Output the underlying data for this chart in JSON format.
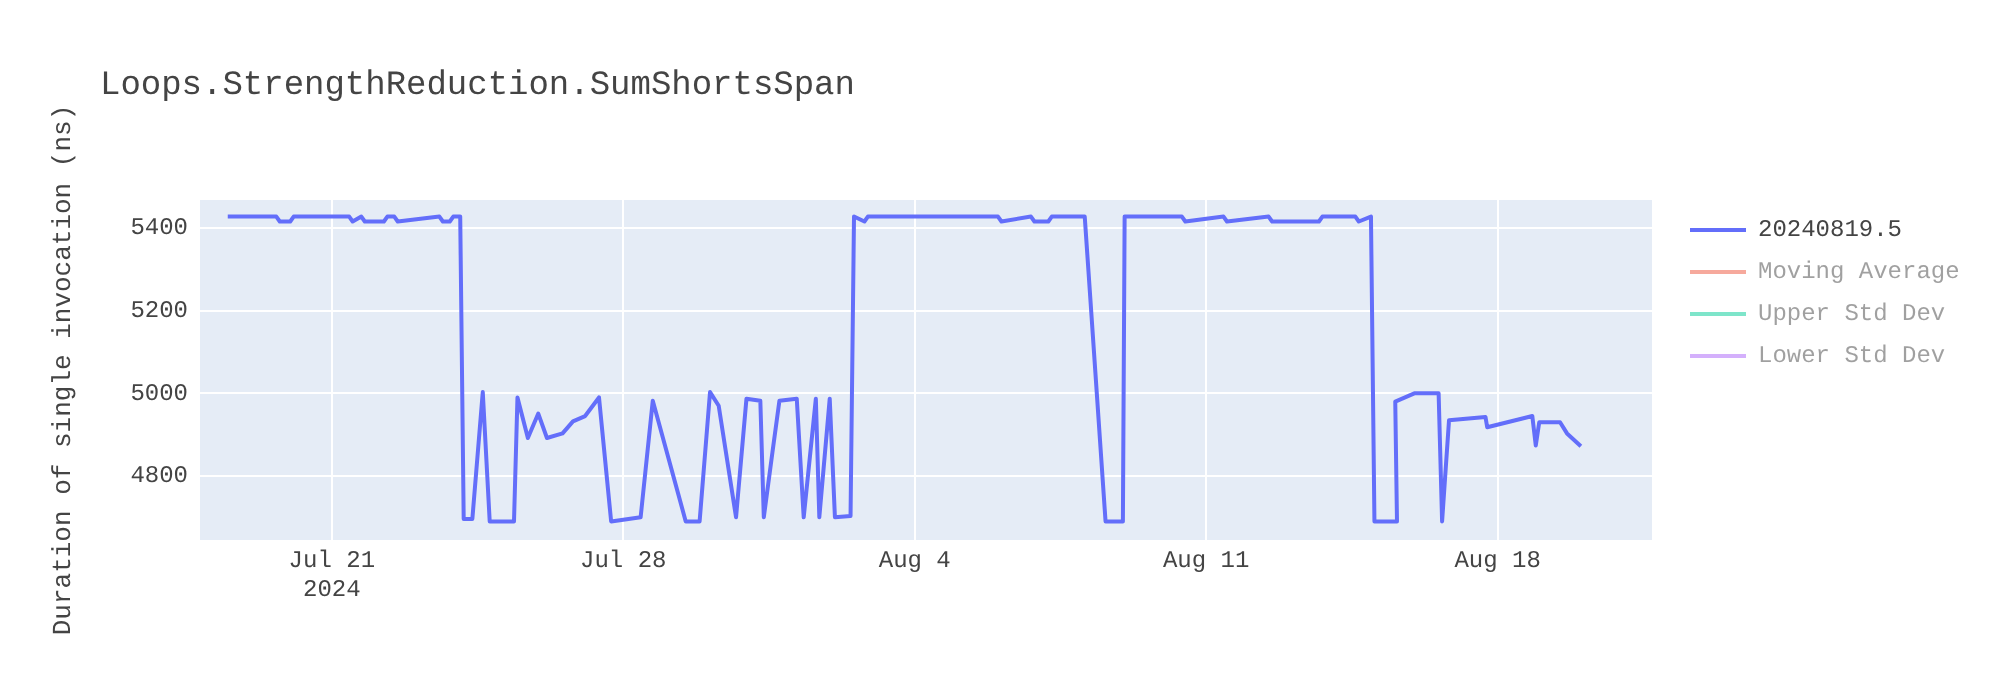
{
  "chart_data": {
    "type": "line",
    "title": "Loops.StrengthReduction.SumShortsSpan",
    "ylabel": "Duration of single invocation (ns)",
    "xlim": [
      "2024-07-17T20:00",
      "2024-08-21T17:00"
    ],
    "xticks": [
      {
        "value": "2024-07-21",
        "label": "Jul 21\n2024"
      },
      {
        "value": "2024-07-28",
        "label": "Jul 28"
      },
      {
        "value": "2024-08-04",
        "label": "Aug 4"
      },
      {
        "value": "2024-08-11",
        "label": "Aug 11"
      },
      {
        "value": "2024-08-18",
        "label": "Aug 18"
      }
    ],
    "ylim": [
      4645,
      5468
    ],
    "yticks": [
      4800,
      5000,
      5200,
      5400
    ],
    "grid": true,
    "legend": "top right",
    "marker": "none",
    "line_style": "solid",
    "series": [
      {
        "name": "20240819.5",
        "color": "#636efa",
        "x": [
          "2024-07-18T12:00",
          "2024-07-19T16:00",
          "2024-07-19T18:00",
          "2024-07-20T00:00",
          "2024-07-20T02:00",
          "2024-07-21T10:00",
          "2024-07-21T12:00",
          "2024-07-21T17:00",
          "2024-07-21T19:00",
          "2024-07-22T06:00",
          "2024-07-22T08:00",
          "2024-07-22T12:00",
          "2024-07-22T14:00",
          "2024-07-23T14:00",
          "2024-07-23T16:00",
          "2024-07-23T20:00",
          "2024-07-23T22:00",
          "2024-07-24T02:00",
          "2024-07-24T04:00",
          "2024-07-24T09:00",
          "2024-07-24T15:00",
          "2024-07-24T19:00",
          "2024-07-25T09:00",
          "2024-07-25T11:00",
          "2024-07-25T17:00",
          "2024-07-25T23:00",
          "2024-07-26T04:00",
          "2024-07-26T13:00",
          "2024-07-26T19:00",
          "2024-07-27T02:00",
          "2024-07-27T10:00",
          "2024-07-27T17:00",
          "2024-07-28T10:00",
          "2024-07-28T17:00",
          "2024-07-29T12:00",
          "2024-07-29T20:00",
          "2024-07-30T02:00",
          "2024-07-30T07:00",
          "2024-07-30T17:00",
          "2024-07-30T23:00",
          "2024-07-31T07:00",
          "2024-07-31T09:00",
          "2024-07-31T14:00",
          "2024-07-31T18:00",
          "2024-08-01T04:00",
          "2024-08-01T08:00",
          "2024-08-01T15:00",
          "2024-08-01T17:00",
          "2024-08-01T23:00",
          "2024-08-02T02:00",
          "2024-08-02T11:00",
          "2024-08-02T13:00",
          "2024-08-02T19:00",
          "2024-08-02T21:00",
          "2024-08-06T00:00",
          "2024-08-06T02:00",
          "2024-08-06T19:00",
          "2024-08-06T21:00",
          "2024-08-07T05:00",
          "2024-08-07T07:00",
          "2024-08-08T02:00",
          "2024-08-08T14:00",
          "2024-08-09T00:00",
          "2024-08-09T01:00",
          "2024-08-10T10:00",
          "2024-08-10T12:00",
          "2024-08-11T10:00",
          "2024-08-11T12:00",
          "2024-08-12T12:00",
          "2024-08-12T14:00",
          "2024-08-13T17:00",
          "2024-08-13T19:00",
          "2024-08-14T14:00",
          "2024-08-14T16:00",
          "2024-08-14T23:00",
          "2024-08-15T01:00",
          "2024-08-15T14:00",
          "2024-08-15T13:00",
          "2024-08-16T00:00",
          "2024-08-16T14:00",
          "2024-08-16T16:00",
          "2024-08-16T20:00",
          "2024-08-17T17:00",
          "2024-08-17T18:00",
          "2024-08-18T20:00",
          "2024-08-18T22:00",
          "2024-08-19T00:00",
          "2024-08-19T12:00",
          "2024-08-19T16:00",
          "2024-08-20T00:00"
        ],
        "values": [
          5428,
          5428,
          5416,
          5416,
          5428,
          5428,
          5416,
          5428,
          5416,
          5416,
          5428,
          5428,
          5416,
          5428,
          5416,
          5416,
          5428,
          5428,
          4696,
          4696,
          5003,
          4690,
          4690,
          4990,
          4892,
          4951,
          4892,
          4903,
          4932,
          4945,
          4990,
          4690,
          4700,
          4982,
          4690,
          4690,
          5003,
          4970,
          4700,
          4987,
          4982,
          4700,
          4858,
          4982,
          4987,
          4700,
          4987,
          4700,
          4987,
          4700,
          4703,
          5428,
          5416,
          5428,
          5428,
          5416,
          5428,
          5416,
          5416,
          5428,
          5428,
          4690,
          4690,
          5428,
          5428,
          5416,
          5428,
          5416,
          5428,
          5416,
          5416,
          5428,
          5428,
          5416,
          5428,
          4690,
          4690,
          4980,
          5000,
          5000,
          4690,
          4935,
          4943,
          4918,
          4945,
          4874,
          4930,
          4930,
          4903,
          4872
        ]
      },
      {
        "name": "Moving Average",
        "color": "#ef553b",
        "values": [
          null
        ]
      },
      {
        "name": "Upper Std Dev",
        "color": "#00cc96",
        "values": [
          null
        ]
      },
      {
        "name": "Lower Std Dev",
        "color": "#ab63fa",
        "values": [
          null
        ]
      }
    ]
  }
}
